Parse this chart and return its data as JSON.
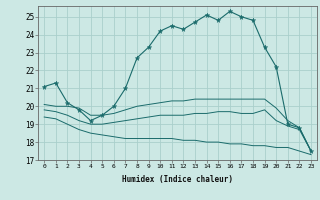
{
  "xlabel": "Humidex (Indice chaleur)",
  "bg_color": "#cce8e4",
  "grid_color": "#aacfcc",
  "line_color": "#1a6b6b",
  "x_ticks": [
    0,
    1,
    2,
    3,
    4,
    5,
    6,
    7,
    8,
    9,
    10,
    11,
    12,
    13,
    14,
    15,
    16,
    17,
    18,
    19,
    20,
    21,
    22,
    23
  ],
  "y_ticks": [
    17,
    18,
    19,
    20,
    21,
    22,
    23,
    24,
    25
  ],
  "xlim": [
    -0.5,
    23.5
  ],
  "ylim": [
    17.0,
    25.6
  ],
  "line1_x": [
    0,
    1,
    2,
    3,
    4,
    5,
    6,
    7,
    8,
    9,
    10,
    11,
    12,
    13,
    14,
    15,
    16,
    17,
    18,
    19,
    20,
    21,
    22,
    23
  ],
  "line1_y": [
    21.1,
    21.3,
    20.2,
    19.8,
    19.2,
    19.5,
    20.0,
    21.0,
    22.7,
    23.3,
    24.2,
    24.5,
    24.3,
    24.7,
    25.1,
    24.8,
    25.3,
    25.0,
    24.8,
    23.3,
    22.2,
    19.0,
    18.8,
    17.5
  ],
  "line2_x": [
    0,
    1,
    2,
    3,
    4,
    5,
    6,
    7,
    8,
    9,
    10,
    11,
    12,
    13,
    14,
    15,
    16,
    17,
    18,
    19,
    20,
    21,
    22,
    23
  ],
  "line2_y": [
    20.1,
    20.0,
    20.0,
    19.9,
    19.5,
    19.5,
    19.6,
    19.8,
    20.0,
    20.1,
    20.2,
    20.3,
    20.3,
    20.4,
    20.4,
    20.4,
    20.4,
    20.4,
    20.4,
    20.4,
    19.9,
    19.2,
    18.8,
    17.5
  ],
  "line3_x": [
    0,
    1,
    2,
    3,
    4,
    5,
    6,
    7,
    8,
    9,
    10,
    11,
    12,
    13,
    14,
    15,
    16,
    17,
    18,
    19,
    20,
    21,
    22,
    23
  ],
  "line3_y": [
    19.8,
    19.7,
    19.5,
    19.2,
    19.0,
    19.0,
    19.1,
    19.2,
    19.3,
    19.4,
    19.5,
    19.5,
    19.5,
    19.6,
    19.6,
    19.7,
    19.7,
    19.6,
    19.6,
    19.8,
    19.2,
    18.9,
    18.7,
    17.5
  ],
  "line4_x": [
    0,
    1,
    2,
    3,
    4,
    5,
    6,
    7,
    8,
    9,
    10,
    11,
    12,
    13,
    14,
    15,
    16,
    17,
    18,
    19,
    20,
    21,
    22,
    23
  ],
  "line4_y": [
    19.4,
    19.3,
    19.0,
    18.7,
    18.5,
    18.4,
    18.3,
    18.2,
    18.2,
    18.2,
    18.2,
    18.2,
    18.1,
    18.1,
    18.0,
    18.0,
    17.9,
    17.9,
    17.8,
    17.8,
    17.7,
    17.7,
    17.5,
    17.3
  ]
}
